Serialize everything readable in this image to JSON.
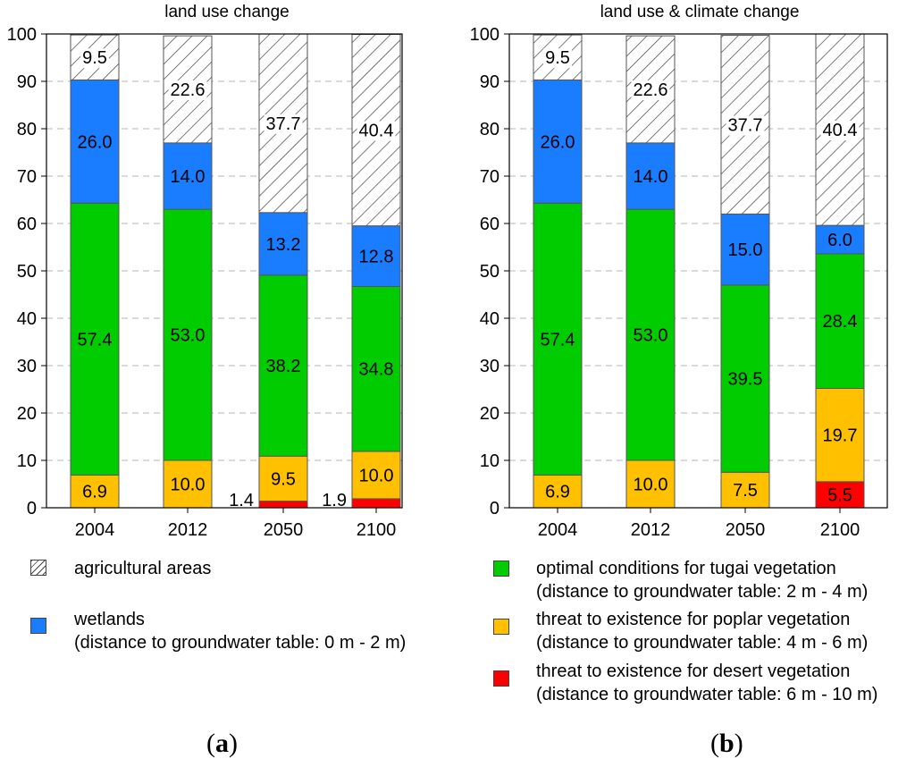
{
  "colors": {
    "agricultural": "#ffffff",
    "wetlands": "#1a7dff",
    "optimal": "#00cc00",
    "poplar": "#ffc000",
    "desert": "#ff0000"
  },
  "chart_data": [
    {
      "type": "bar",
      "stacked": true,
      "title": "land use change",
      "categories": [
        "2004",
        "2012",
        "2050",
        "2100"
      ],
      "ylim": [
        0,
        100
      ],
      "yticks": [
        "0",
        "10",
        "20",
        "30",
        "40",
        "50",
        "60",
        "70",
        "80",
        "90",
        "100"
      ],
      "grid": true,
      "series": [
        {
          "key": "desert",
          "values": [
            0,
            0,
            1.4,
            1.9
          ],
          "labels": [
            "",
            "",
            "1.4",
            "1.9"
          ],
          "label_outside": true
        },
        {
          "key": "poplar",
          "values": [
            6.9,
            10.0,
            9.5,
            10.0
          ],
          "labels": [
            "6.9",
            "10.0",
            "9.5",
            "10.0"
          ]
        },
        {
          "key": "optimal",
          "values": [
            57.4,
            53.0,
            38.2,
            34.8
          ],
          "labels": [
            "57.4",
            "53.0",
            "38.2",
            "34.8"
          ]
        },
        {
          "key": "wetlands",
          "values": [
            26.0,
            14.0,
            13.2,
            12.8
          ],
          "labels": [
            "26.0",
            "14.0",
            "13.2",
            "12.8"
          ]
        },
        {
          "key": "agricultural",
          "values": [
            9.5,
            22.6,
            37.7,
            40.4
          ],
          "labels": [
            "9.5",
            "22.6",
            "37.7",
            "40.4"
          ]
        }
      ]
    },
    {
      "type": "bar",
      "stacked": true,
      "title": "land use & climate change",
      "categories": [
        "2004",
        "2012",
        "2050",
        "2100"
      ],
      "ylim": [
        0,
        100
      ],
      "yticks": [
        "0",
        "10",
        "20",
        "30",
        "40",
        "50",
        "60",
        "70",
        "80",
        "90",
        "100"
      ],
      "grid": true,
      "series": [
        {
          "key": "desert",
          "values": [
            0,
            0,
            0,
            5.5
          ],
          "labels": [
            "",
            "",
            "",
            "5.5"
          ]
        },
        {
          "key": "poplar",
          "values": [
            6.9,
            10.0,
            7.5,
            19.7
          ],
          "labels": [
            "6.9",
            "10.0",
            "7.5",
            "19.7"
          ]
        },
        {
          "key": "optimal",
          "values": [
            57.4,
            53.0,
            39.5,
            28.4
          ],
          "labels": [
            "57.4",
            "53.0",
            "39.5",
            "28.4"
          ]
        },
        {
          "key": "wetlands",
          "values": [
            26.0,
            14.0,
            15.0,
            6.0
          ],
          "labels": [
            "26.0",
            "14.0",
            "15.0",
            "6.0"
          ]
        },
        {
          "key": "agricultural",
          "values": [
            9.5,
            22.6,
            37.7,
            40.4
          ],
          "labels": [
            "9.5",
            "22.6",
            "37.7",
            "40.4"
          ]
        }
      ]
    }
  ],
  "legend": {
    "agricultural": {
      "line1": "agricultural areas",
      "line2": ""
    },
    "wetlands": {
      "line1": "wetlands",
      "line2": "(distance to groundwater table: 0 m - 2 m)"
    },
    "optimal": {
      "line1": "optimal conditions for tugai vegetation",
      "line2": "(distance to groundwater table: 2 m - 4 m)"
    },
    "poplar": {
      "line1": "threat to existence  for poplar vegetation",
      "line2": "(distance to groundwater table: 4 m - 6 m)"
    },
    "desert": {
      "line1": "threat to existence  for desert vegetation",
      "line2": "(distance to groundwater table: 6 m - 10 m)"
    }
  },
  "panel_labels": {
    "a": {
      "open": "(",
      "letter": "a",
      "close": ")"
    },
    "b": {
      "open": "(",
      "letter": "b",
      "close": ")"
    }
  }
}
